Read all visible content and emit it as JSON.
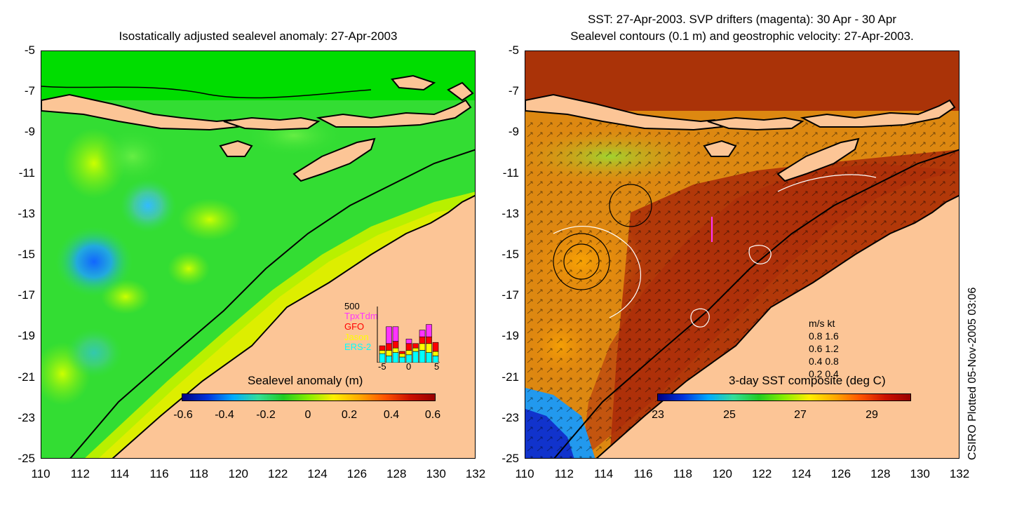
{
  "left_panel": {
    "title": "Isostatically adjusted sealevel anomaly: 27-Apr-2003",
    "colorbar": {
      "title": "Sealevel anomaly (m)",
      "ticks": [
        "-0.6",
        "-0.4",
        "-0.2",
        "0",
        "0.2",
        "0.4",
        "0.6"
      ]
    },
    "inset": {
      "ymax_label": "500",
      "missions": [
        {
          "name": "TpxTdm",
          "color": "#ff33ff"
        },
        {
          "name": "GFO",
          "color": "#ff0000"
        },
        {
          "name": "Jason",
          "color": "#ffff00"
        },
        {
          "name": "ERS-2",
          "color": "#00ffff"
        }
      ],
      "xticks": [
        "-5",
        "0",
        "5"
      ],
      "bars": [
        {
          "day": -4,
          "ers2": 80,
          "jason": 30,
          "gfo": 40,
          "tpx": 0
        },
        {
          "day": -3,
          "ers2": 60,
          "jason": 50,
          "gfo": 60,
          "tpx": 150
        },
        {
          "day": -2,
          "ers2": 90,
          "jason": 40,
          "gfo": 60,
          "tpx": 130
        },
        {
          "day": -1,
          "ers2": 50,
          "jason": 30,
          "gfo": 20,
          "tpx": 0
        },
        {
          "day": 0,
          "ers2": 70,
          "jason": 40,
          "gfo": 60,
          "tpx": 40
        },
        {
          "day": 1,
          "ers2": 100,
          "jason": 30,
          "gfo": 40,
          "tpx": 0
        },
        {
          "day": 2,
          "ers2": 110,
          "jason": 60,
          "gfo": 60,
          "tpx": 60
        },
        {
          "day": 3,
          "ers2": 90,
          "jason": 80,
          "gfo": 60,
          "tpx": 110
        },
        {
          "day": 4,
          "ers2": 60,
          "jason": 40,
          "gfo": 80,
          "tpx": 0
        }
      ]
    }
  },
  "right_panel": {
    "title_line1": "SST: 27-Apr-2003. SVP drifters (magenta): 30 Apr - 30 Apr",
    "title_line2": "Sealevel contours (0.1 m) and geostrophic velocity: 27-Apr-2003.",
    "colorbar": {
      "title": "3-day SST composite (deg C)",
      "ticks": [
        "23",
        "25",
        "27",
        "29"
      ]
    },
    "velocity_legend": {
      "header": "m/s  kt",
      "rows": [
        "0.8  1.6",
        "0.6  1.2",
        "0.4  0.8",
        "0.2  0.4"
      ]
    }
  },
  "axes": {
    "y_ticks": [
      "-5",
      "-7",
      "-9",
      "-11",
      "-13",
      "-15",
      "-17",
      "-19",
      "-21",
      "-23",
      "-25"
    ],
    "x_ticks": [
      "110",
      "112",
      "114",
      "116",
      "118",
      "120",
      "122",
      "124",
      "126",
      "128",
      "130",
      "132"
    ]
  },
  "credit": "CSIRO Plotted 05-Nov-2005 03:06",
  "colors": {
    "land": "#fcc596",
    "sla_base": "#33dd33",
    "sst_base": "#cc5511"
  }
}
